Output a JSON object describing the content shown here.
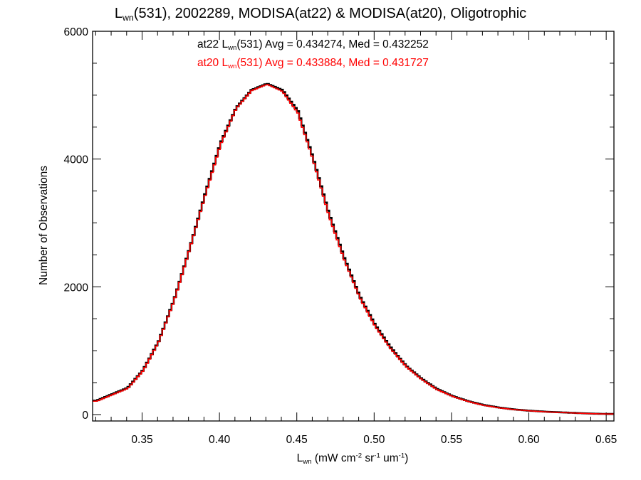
{
  "title": {
    "main": "L",
    "sub": "wn",
    "rest": "(531), 2002289, MODISA(at22) & MODISA(at20), Oligotrophic"
  },
  "stats": [
    {
      "series": "at22 L",
      "sub": "wn",
      "rest": "(531) Avg = 0.434274, Med = 0.432252",
      "color": "#000000"
    },
    {
      "series": "at20 L",
      "sub": "wn",
      "rest": "(531) Avg = 0.433884, Med = 0.431727",
      "color": "#ff0000"
    }
  ],
  "xlabel": {
    "main": "L",
    "sub": "wn",
    "p1": " (mW cm",
    "e1": "-2",
    "p2": " sr",
    "e2": "-1",
    "p3": " um",
    "e3": "-1",
    "p4": ")"
  },
  "ylabel": "Number of Observations",
  "chart_data": {
    "type": "line",
    "xlim": [
      0.318,
      0.655
    ],
    "ylim": [
      -100,
      6000
    ],
    "xticks": [
      "0.35",
      "0.40",
      "0.45",
      "0.50",
      "0.55",
      "0.60",
      "0.65"
    ],
    "yticks": [
      "0",
      "2000",
      "4000",
      "6000"
    ],
    "series": [
      {
        "name": "at22",
        "color": "#000000",
        "x": [
          0.32,
          0.33,
          0.34,
          0.35,
          0.36,
          0.37,
          0.38,
          0.39,
          0.4,
          0.41,
          0.42,
          0.43,
          0.44,
          0.45,
          0.46,
          0.47,
          0.48,
          0.49,
          0.5,
          0.51,
          0.52,
          0.53,
          0.54,
          0.55,
          0.56,
          0.57,
          0.58,
          0.59,
          0.6,
          0.61,
          0.62,
          0.63,
          0.64,
          0.65
        ],
        "y": [
          220,
          320,
          420,
          700,
          1150,
          1800,
          2600,
          3450,
          4250,
          4800,
          5080,
          5180,
          5080,
          4750,
          4000,
          3150,
          2450,
          1850,
          1400,
          1050,
          760,
          560,
          400,
          290,
          210,
          150,
          110,
          80,
          60,
          45,
          35,
          25,
          15,
          10
        ]
      },
      {
        "name": "at20",
        "color": "#ff0000",
        "x": [
          0.32,
          0.33,
          0.34,
          0.35,
          0.36,
          0.37,
          0.38,
          0.39,
          0.4,
          0.41,
          0.42,
          0.43,
          0.44,
          0.45,
          0.46,
          0.47,
          0.48,
          0.49,
          0.5,
          0.51,
          0.52,
          0.53,
          0.54,
          0.55,
          0.56,
          0.57,
          0.58,
          0.59,
          0.6,
          0.61,
          0.62,
          0.63,
          0.64,
          0.65
        ],
        "y": [
          210,
          310,
          410,
          690,
          1140,
          1790,
          2590,
          3430,
          4230,
          4790,
          5070,
          5170,
          5060,
          4720,
          3970,
          3120,
          2420,
          1830,
          1380,
          1030,
          750,
          550,
          390,
          285,
          205,
          145,
          105,
          78,
          58,
          43,
          33,
          23,
          14,
          9
        ]
      }
    ]
  }
}
